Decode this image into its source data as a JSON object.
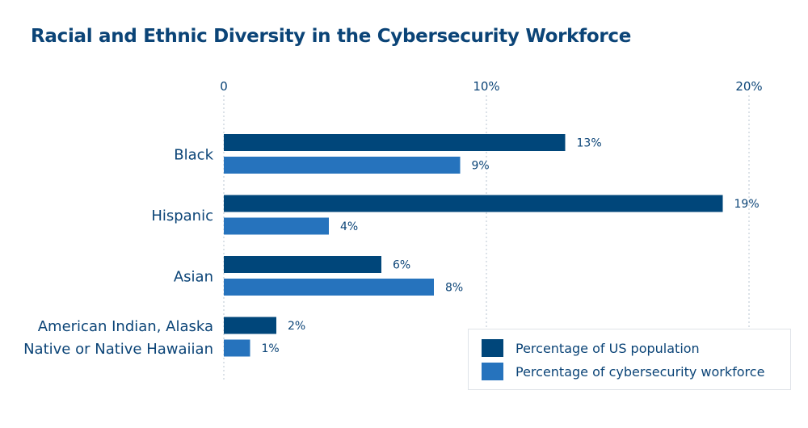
{
  "chart_data": {
    "type": "bar",
    "orientation": "horizontal",
    "title": "Racial and Ethnic Diversity in the Cybersecurity Workforce",
    "categories": [
      "Black",
      "Hispanic",
      "Asian",
      "American Indian, Alaska Native or Native Hawaiian"
    ],
    "category_label_lines": [
      [
        "Black"
      ],
      [
        "Hispanic"
      ],
      [
        "Asian"
      ],
      [
        "American Indian, Alaska",
        "Native or Native Hawaiian"
      ]
    ],
    "series": [
      {
        "name": "Percentage of US population",
        "values": [
          13,
          19,
          6,
          2
        ],
        "color": "#00467a"
      },
      {
        "name": "Percentage of cybersecurity workforce",
        "values": [
          9,
          4,
          8,
          1
        ],
        "color": "#2673bd"
      }
    ],
    "xlim": [
      0,
      20
    ],
    "xticks": [
      {
        "value": 0,
        "label": "0"
      },
      {
        "value": 10,
        "label": "10%"
      },
      {
        "value": 20,
        "label": "20%"
      }
    ],
    "value_suffix": "%",
    "grid": true,
    "legend_position": "bottom-right"
  }
}
